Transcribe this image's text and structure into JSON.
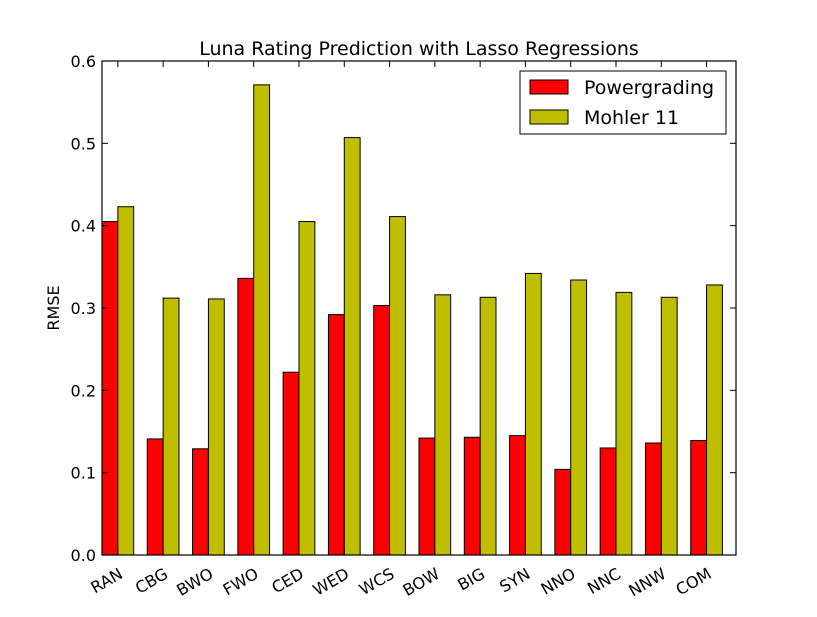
{
  "chart_data": {
    "type": "bar",
    "title": "Luna Rating Prediction with Lasso Regressions",
    "xlabel": "",
    "ylabel": "RMSE",
    "ylim": [
      0.0,
      0.6
    ],
    "yticks": [
      "0.0",
      "0.1",
      "0.2",
      "0.3",
      "0.4",
      "0.5",
      "0.6"
    ],
    "categories": [
      "RAN",
      "CBG",
      "BWO",
      "FWO",
      "CED",
      "WED",
      "WCS",
      "BOW",
      "BIG",
      "SYN",
      "NNO",
      "NNC",
      "NNW",
      "COM"
    ],
    "series": [
      {
        "name": "Powergrading",
        "color": "#ff0000",
        "values": [
          0.405,
          0.141,
          0.129,
          0.336,
          0.222,
          0.292,
          0.303,
          0.142,
          0.143,
          0.145,
          0.104,
          0.13,
          0.136,
          0.139
        ]
      },
      {
        "name": "Mohler 11",
        "color": "#bfbf00",
        "values": [
          0.423,
          0.312,
          0.311,
          0.571,
          0.405,
          0.507,
          0.411,
          0.316,
          0.313,
          0.342,
          0.334,
          0.319,
          0.313,
          0.328
        ]
      }
    ],
    "legend_position": "top-right",
    "grid": false
  }
}
